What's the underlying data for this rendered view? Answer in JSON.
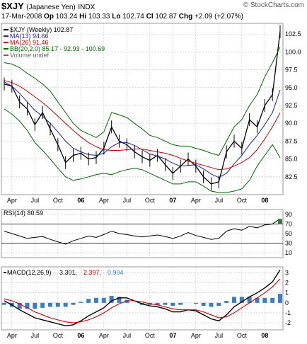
{
  "header": {
    "symbol": "$XJY",
    "name": "(Japanese Yen)",
    "exchange": "INDX",
    "brand": "© StockCharts.com",
    "date": "17-Mar-2008",
    "open_label": "Op",
    "open": "103.24",
    "high_label": "Hi",
    "high": "103.33",
    "low_label": "Lo",
    "low": "102.74",
    "close_label": "Cl",
    "close": "102.87",
    "change_label": "Chg",
    "change": "+2.09 (+2.07%)"
  },
  "colors": {
    "price": "#000000",
    "ma13": "#1f1f9e",
    "ma26": "#cc0000",
    "bb": "#006600",
    "panel_border": "#999999",
    "grid": "#bbbbbb",
    "rsi_fill": "#3a7a3a",
    "macd_hist": "#3a7fc1",
    "macd_signal": "#cc0000"
  },
  "x_axis": {
    "labels": [
      "Apr",
      "Jul",
      "Oct",
      "06",
      "Apr",
      "Jul",
      "Oct",
      "07",
      "Apr",
      "Jul",
      "Oct",
      "08"
    ]
  },
  "chart_data": [
    {
      "type": "line",
      "title": "$XJY (Weekly) 102.87",
      "legend": [
        {
          "text": "$XJY (Weekly) 102.87",
          "color": "#000000"
        },
        {
          "text": "MA(13) 94.66",
          "color": "#1f1f9e"
        },
        {
          "text": "MA(26) 91.46",
          "color": "#cc0000"
        },
        {
          "text": "BB(20,2.0) 85.17 - 92.93 - 100.69",
          "color": "#006600"
        },
        {
          "text": "Volume undef",
          "color": "#666666"
        }
      ],
      "y_ticks": [
        82.5,
        85.0,
        87.5,
        90.0,
        92.5,
        95.0,
        97.5,
        100.0,
        102.5
      ],
      "ylim": [
        80,
        104
      ],
      "x": [
        "2005-03",
        "2005-04",
        "2005-05",
        "2005-06",
        "2005-07",
        "2005-08",
        "2005-09",
        "2005-10",
        "2005-11",
        "2005-12",
        "2006-01",
        "2006-02",
        "2006-03",
        "2006-04",
        "2006-05",
        "2006-06",
        "2006-07",
        "2006-08",
        "2006-09",
        "2006-10",
        "2006-11",
        "2006-12",
        "2007-01",
        "2007-02",
        "2007-03",
        "2007-04",
        "2007-05",
        "2007-06",
        "2007-07",
        "2007-08",
        "2007-09",
        "2007-10",
        "2007-11",
        "2007-12",
        "2008-01",
        "2008-02",
        "2008-03"
      ],
      "series": [
        {
          "name": "$XJY (Weekly)",
          "values": [
            95.5,
            95.2,
            93.0,
            92.0,
            89.8,
            91.5,
            89.2,
            87.0,
            84.5,
            85.5,
            85.8,
            85.0,
            85.2,
            86.5,
            89.5,
            87.5,
            87.0,
            86.0,
            85.3,
            84.8,
            85.5,
            84.2,
            83.0,
            84.0,
            85.0,
            84.0,
            82.5,
            81.5,
            81.8,
            86.0,
            87.5,
            86.5,
            90.5,
            89.5,
            92.5,
            94.0,
            102.87
          ]
        },
        {
          "name": "MA(13)",
          "values": [
            95.8,
            95.2,
            94.2,
            93.0,
            91.8,
            91.0,
            90.0,
            88.8,
            87.5,
            86.5,
            86.0,
            85.6,
            85.5,
            85.8,
            86.7,
            87.3,
            87.3,
            86.9,
            86.3,
            85.7,
            85.4,
            85.0,
            84.4,
            84.0,
            84.1,
            84.2,
            83.6,
            82.9,
            82.4,
            83.0,
            84.3,
            85.5,
            87.0,
            88.3,
            89.8,
            91.5,
            94.66
          ]
        },
        {
          "name": "MA(26)",
          "values": [
            96.0,
            95.7,
            95.2,
            94.5,
            93.7,
            92.9,
            92.0,
            91.0,
            90.0,
            89.0,
            88.1,
            87.3,
            86.7,
            86.3,
            86.2,
            86.2,
            86.3,
            86.4,
            86.4,
            86.2,
            86.0,
            85.8,
            85.5,
            85.1,
            84.7,
            84.4,
            84.1,
            83.8,
            83.5,
            83.6,
            84.0,
            84.5,
            85.2,
            86.3,
            87.8,
            89.5,
            91.46
          ]
        },
        {
          "name": "BB upper",
          "values": [
            98.5,
            98.3,
            97.8,
            97.0,
            96.3,
            95.5,
            94.5,
            93.0,
            91.5,
            90.0,
            89.0,
            88.5,
            88.0,
            88.8,
            91.5,
            91.2,
            90.8,
            90.0,
            89.2,
            88.3,
            88.0,
            87.5,
            87.0,
            86.8,
            86.8,
            86.5,
            86.2,
            85.8,
            85.5,
            87.5,
            89.5,
            90.5,
            92.5,
            94.0,
            96.5,
            98.5,
            100.69
          ]
        },
        {
          "name": "BB lower",
          "values": [
            92.0,
            91.3,
            90.3,
            89.0,
            87.3,
            86.2,
            85.0,
            83.7,
            82.5,
            82.0,
            82.2,
            82.5,
            82.8,
            83.0,
            82.8,
            83.2,
            83.5,
            83.7,
            83.5,
            83.0,
            82.5,
            82.0,
            81.5,
            81.5,
            81.8,
            81.8,
            81.2,
            80.5,
            80.3,
            80.3,
            80.5,
            80.8,
            82.0,
            84.0,
            85.5,
            87.0,
            85.17
          ]
        }
      ]
    },
    {
      "type": "line",
      "title": "RSI(14) 80.59",
      "y_ticks": [
        10,
        30,
        50,
        70,
        90
      ],
      "ylim": [
        0,
        100
      ],
      "series": [
        {
          "name": "RSI(14)",
          "values": [
            55,
            50,
            45,
            40,
            42,
            44,
            38,
            33,
            28,
            35,
            40,
            45,
            42,
            48,
            55,
            50,
            48,
            45,
            43,
            45,
            47,
            44,
            40,
            45,
            52,
            46,
            42,
            38,
            40,
            55,
            60,
            57,
            65,
            62,
            68,
            70,
            80.59
          ]
        }
      ]
    },
    {
      "type": "line",
      "title": "MACD(12,26,9) 3.301, 2.397, 0.904",
      "legend": [
        {
          "text": "MACD(12,26,9)",
          "color": "#000000"
        },
        {
          "text": "3.301",
          "color": "#000000"
        },
        {
          "text": "2.397",
          "color": "#cc0000"
        },
        {
          "text": "0.904",
          "color": "#3a7fc1"
        }
      ],
      "y_ticks": [
        -2,
        -1,
        0,
        1,
        2,
        3
      ],
      "ylim": [
        -2.7,
        3.6
      ],
      "series": [
        {
          "name": "MACD",
          "values": [
            0.2,
            -0.2,
            -0.7,
            -1.1,
            -1.5,
            -1.7,
            -1.9,
            -2.1,
            -2.3,
            -2.2,
            -1.8,
            -1.3,
            -0.9,
            -0.5,
            0.2,
            0.5,
            0.5,
            0.2,
            -0.1,
            -0.3,
            -0.4,
            -0.6,
            -0.9,
            -0.9,
            -0.7,
            -0.8,
            -1.2,
            -1.6,
            -1.8,
            -1.2,
            -0.4,
            0.1,
            0.6,
            1.0,
            1.5,
            2.1,
            3.301
          ]
        },
        {
          "name": "Signal",
          "values": [
            0.4,
            0.2,
            -0.1,
            -0.5,
            -0.9,
            -1.2,
            -1.5,
            -1.7,
            -1.9,
            -2.0,
            -1.9,
            -1.7,
            -1.4,
            -1.0,
            -0.5,
            -0.1,
            0.2,
            0.2,
            0.1,
            -0.1,
            -0.2,
            -0.4,
            -0.6,
            -0.7,
            -0.7,
            -0.7,
            -0.9,
            -1.2,
            -1.5,
            -1.4,
            -1.0,
            -0.5,
            0.0,
            0.5,
            1.0,
            1.6,
            2.397
          ]
        },
        {
          "name": "Histogram",
          "values": [
            -0.2,
            -0.4,
            -0.6,
            -0.6,
            -0.6,
            -0.5,
            -0.4,
            -0.4,
            -0.4,
            -0.2,
            0.1,
            0.4,
            0.5,
            0.5,
            0.7,
            0.6,
            0.3,
            0.0,
            -0.2,
            -0.2,
            -0.2,
            -0.2,
            -0.3,
            -0.2,
            0.0,
            -0.1,
            -0.3,
            -0.4,
            -0.3,
            0.2,
            0.6,
            0.6,
            0.6,
            0.5,
            0.5,
            0.5,
            0.904
          ]
        }
      ]
    }
  ]
}
